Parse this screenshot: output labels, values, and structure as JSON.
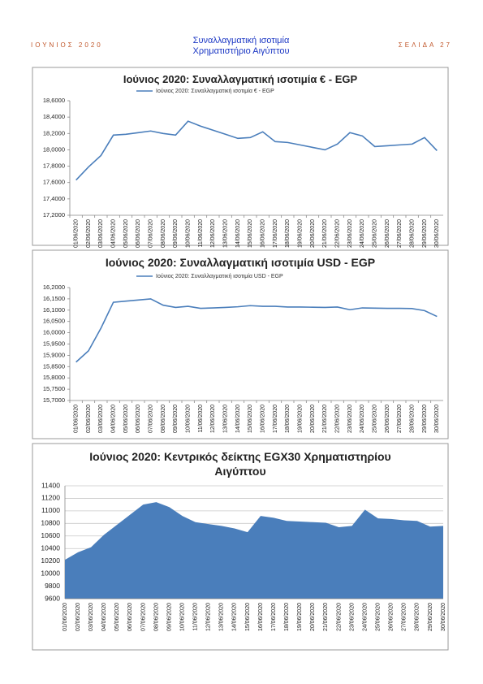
{
  "header": {
    "left": "ΙΟΥΝΙΟΣ 2020",
    "title": [
      "Συναλλαγματική ισοτιμία",
      "Χρηματιστήριο Αιγύπτου"
    ],
    "right": "ΣΕΛΙΔΑ 27"
  },
  "chart_data": [
    {
      "type": "line",
      "title": "Ιούνιος 2020: Συναλλαγματική ισοτιμία € - EGP",
      "categories": [
        "01/06/2020",
        "02/06/2020",
        "03/06/2020",
        "04/06/2020",
        "05/06/2020",
        "06/06/2020",
        "07/06/2020",
        "08/06/2020",
        "09/06/2020",
        "10/06/2020",
        "11/06/2020",
        "12/06/2020",
        "13/06/2020",
        "14/06/2020",
        "15/06/2020",
        "16/06/2020",
        "17/06/2020",
        "18/06/2020",
        "19/06/2020",
        "20/06/2020",
        "21/06/2020",
        "22/06/2020",
        "23/06/2020",
        "24/06/2020",
        "25/06/2020",
        "26/06/2020",
        "27/06/2020",
        "28/06/2020",
        "29/06/2020",
        "30/06/2020"
      ],
      "series": [
        {
          "name": "Ιούνιος 2020: Συναλλαγματική  ισοτιμία € - EGP",
          "color": "#4a7ebb",
          "values": [
            17.63,
            17.79,
            17.93,
            18.18,
            18.19,
            18.21,
            18.23,
            18.2,
            18.18,
            18.35,
            18.29,
            18.24,
            18.19,
            18.14,
            18.15,
            18.22,
            18.1,
            18.09,
            18.06,
            18.03,
            18.0,
            18.07,
            18.21,
            18.17,
            18.04,
            18.05,
            18.06,
            18.07,
            18.15,
            17.99
          ]
        }
      ],
      "ylim": [
        17.2,
        18.6
      ],
      "yticks": [
        {
          "value": 17.2,
          "label": "17,2000"
        },
        {
          "value": 17.4,
          "label": "17,4000"
        },
        {
          "value": 17.6,
          "label": "17,6000"
        },
        {
          "value": 17.8,
          "label": "17,8000"
        },
        {
          "value": 18.0,
          "label": "18,0000"
        },
        {
          "value": 18.2,
          "label": "18,2000"
        },
        {
          "value": 18.4,
          "label": "18,4000"
        },
        {
          "value": 18.6,
          "label": "18,6000"
        }
      ],
      "grid": false,
      "legend": "top"
    },
    {
      "type": "line",
      "title": "Ιούνιος 2020: Συναλλαγματική ισοτιμία USD - EGP",
      "categories": [
        "01/06/2020",
        "02/06/2020",
        "03/06/2020",
        "04/06/2020",
        "05/06/2020",
        "06/06/2020",
        "07/06/2020",
        "08/06/2020",
        "09/06/2020",
        "10/06/2020",
        "11/06/2020",
        "12/06/2020",
        "13/06/2020",
        "14/06/2020",
        "15/06/2020",
        "16/06/2020",
        "17/06/2020",
        "18/06/2020",
        "19/06/2020",
        "20/06/2020",
        "21/06/2020",
        "22/06/2020",
        "23/06/2020",
        "24/06/2020",
        "25/06/2020",
        "26/06/2020",
        "27/06/2020",
        "28/06/2020",
        "29/06/2020",
        "30/06/2020"
      ],
      "series": [
        {
          "name": "Ιούνιος 2020: Συναλλαγματική ισοτιμία USD - EGP",
          "color": "#4a7ebb",
          "values": [
            15.87,
            15.92,
            16.02,
            16.135,
            16.14,
            16.145,
            16.15,
            16.122,
            16.112,
            16.117,
            16.108,
            16.11,
            16.112,
            16.115,
            16.12,
            16.117,
            16.117,
            16.114,
            16.114,
            16.113,
            16.112,
            16.114,
            16.102,
            16.11,
            16.109,
            16.108,
            16.108,
            16.107,
            16.098,
            16.072
          ]
        }
      ],
      "ylim": [
        15.7,
        16.2
      ],
      "yticks": [
        {
          "value": 15.7,
          "label": "15,7000"
        },
        {
          "value": 15.75,
          "label": "15,7500"
        },
        {
          "value": 15.8,
          "label": "15,8000"
        },
        {
          "value": 15.85,
          "label": "15,8500"
        },
        {
          "value": 15.9,
          "label": "15,9000"
        },
        {
          "value": 15.95,
          "label": "15,9500"
        },
        {
          "value": 16.0,
          "label": "16,0000"
        },
        {
          "value": 16.05,
          "label": "16,0500"
        },
        {
          "value": 16.1,
          "label": "16,1000"
        },
        {
          "value": 16.15,
          "label": "16,1500"
        },
        {
          "value": 16.2,
          "label": "16,2000"
        }
      ],
      "grid": false,
      "legend": "top"
    },
    {
      "type": "area",
      "title": "Ιούνιος 2020: Κεντρικός δείκτης EGX30 Χρηματιστηρίου Αιγύπτου",
      "categories": [
        "01/06/2020",
        "02/06/2020",
        "03/06/2020",
        "04/06/2020",
        "05/06/2020",
        "06/06/2020",
        "07/06/2020",
        "08/06/2020",
        "09/06/2020",
        "10/06/2020",
        "11/06/2020",
        "12/06/2020",
        "13/06/2020",
        "14/06/2020",
        "15/06/2020",
        "16/06/2020",
        "17/06/2020",
        "18/06/2020",
        "19/06/2020",
        "20/06/2020",
        "21/06/2020",
        "22/06/2020",
        "23/06/2020",
        "24/06/2020",
        "25/06/2020",
        "26/06/2020",
        "27/06/2020",
        "28/06/2020",
        "29/06/2020",
        "30/06/2020"
      ],
      "values": [
        10220,
        10340,
        10420,
        10620,
        10780,
        10940,
        11100,
        11140,
        11060,
        10920,
        10820,
        10790,
        10760,
        10720,
        10660,
        10920,
        10890,
        10840,
        10830,
        10820,
        10810,
        10740,
        10760,
        11020,
        10880,
        10870,
        10850,
        10840,
        10750,
        10760
      ],
      "color": "#4a7ebb",
      "ylim": [
        9600,
        11400
      ],
      "yticks": [
        9600,
        9800,
        10000,
        10200,
        10400,
        10600,
        10800,
        11000,
        11200,
        11400
      ],
      "grid": true
    }
  ]
}
